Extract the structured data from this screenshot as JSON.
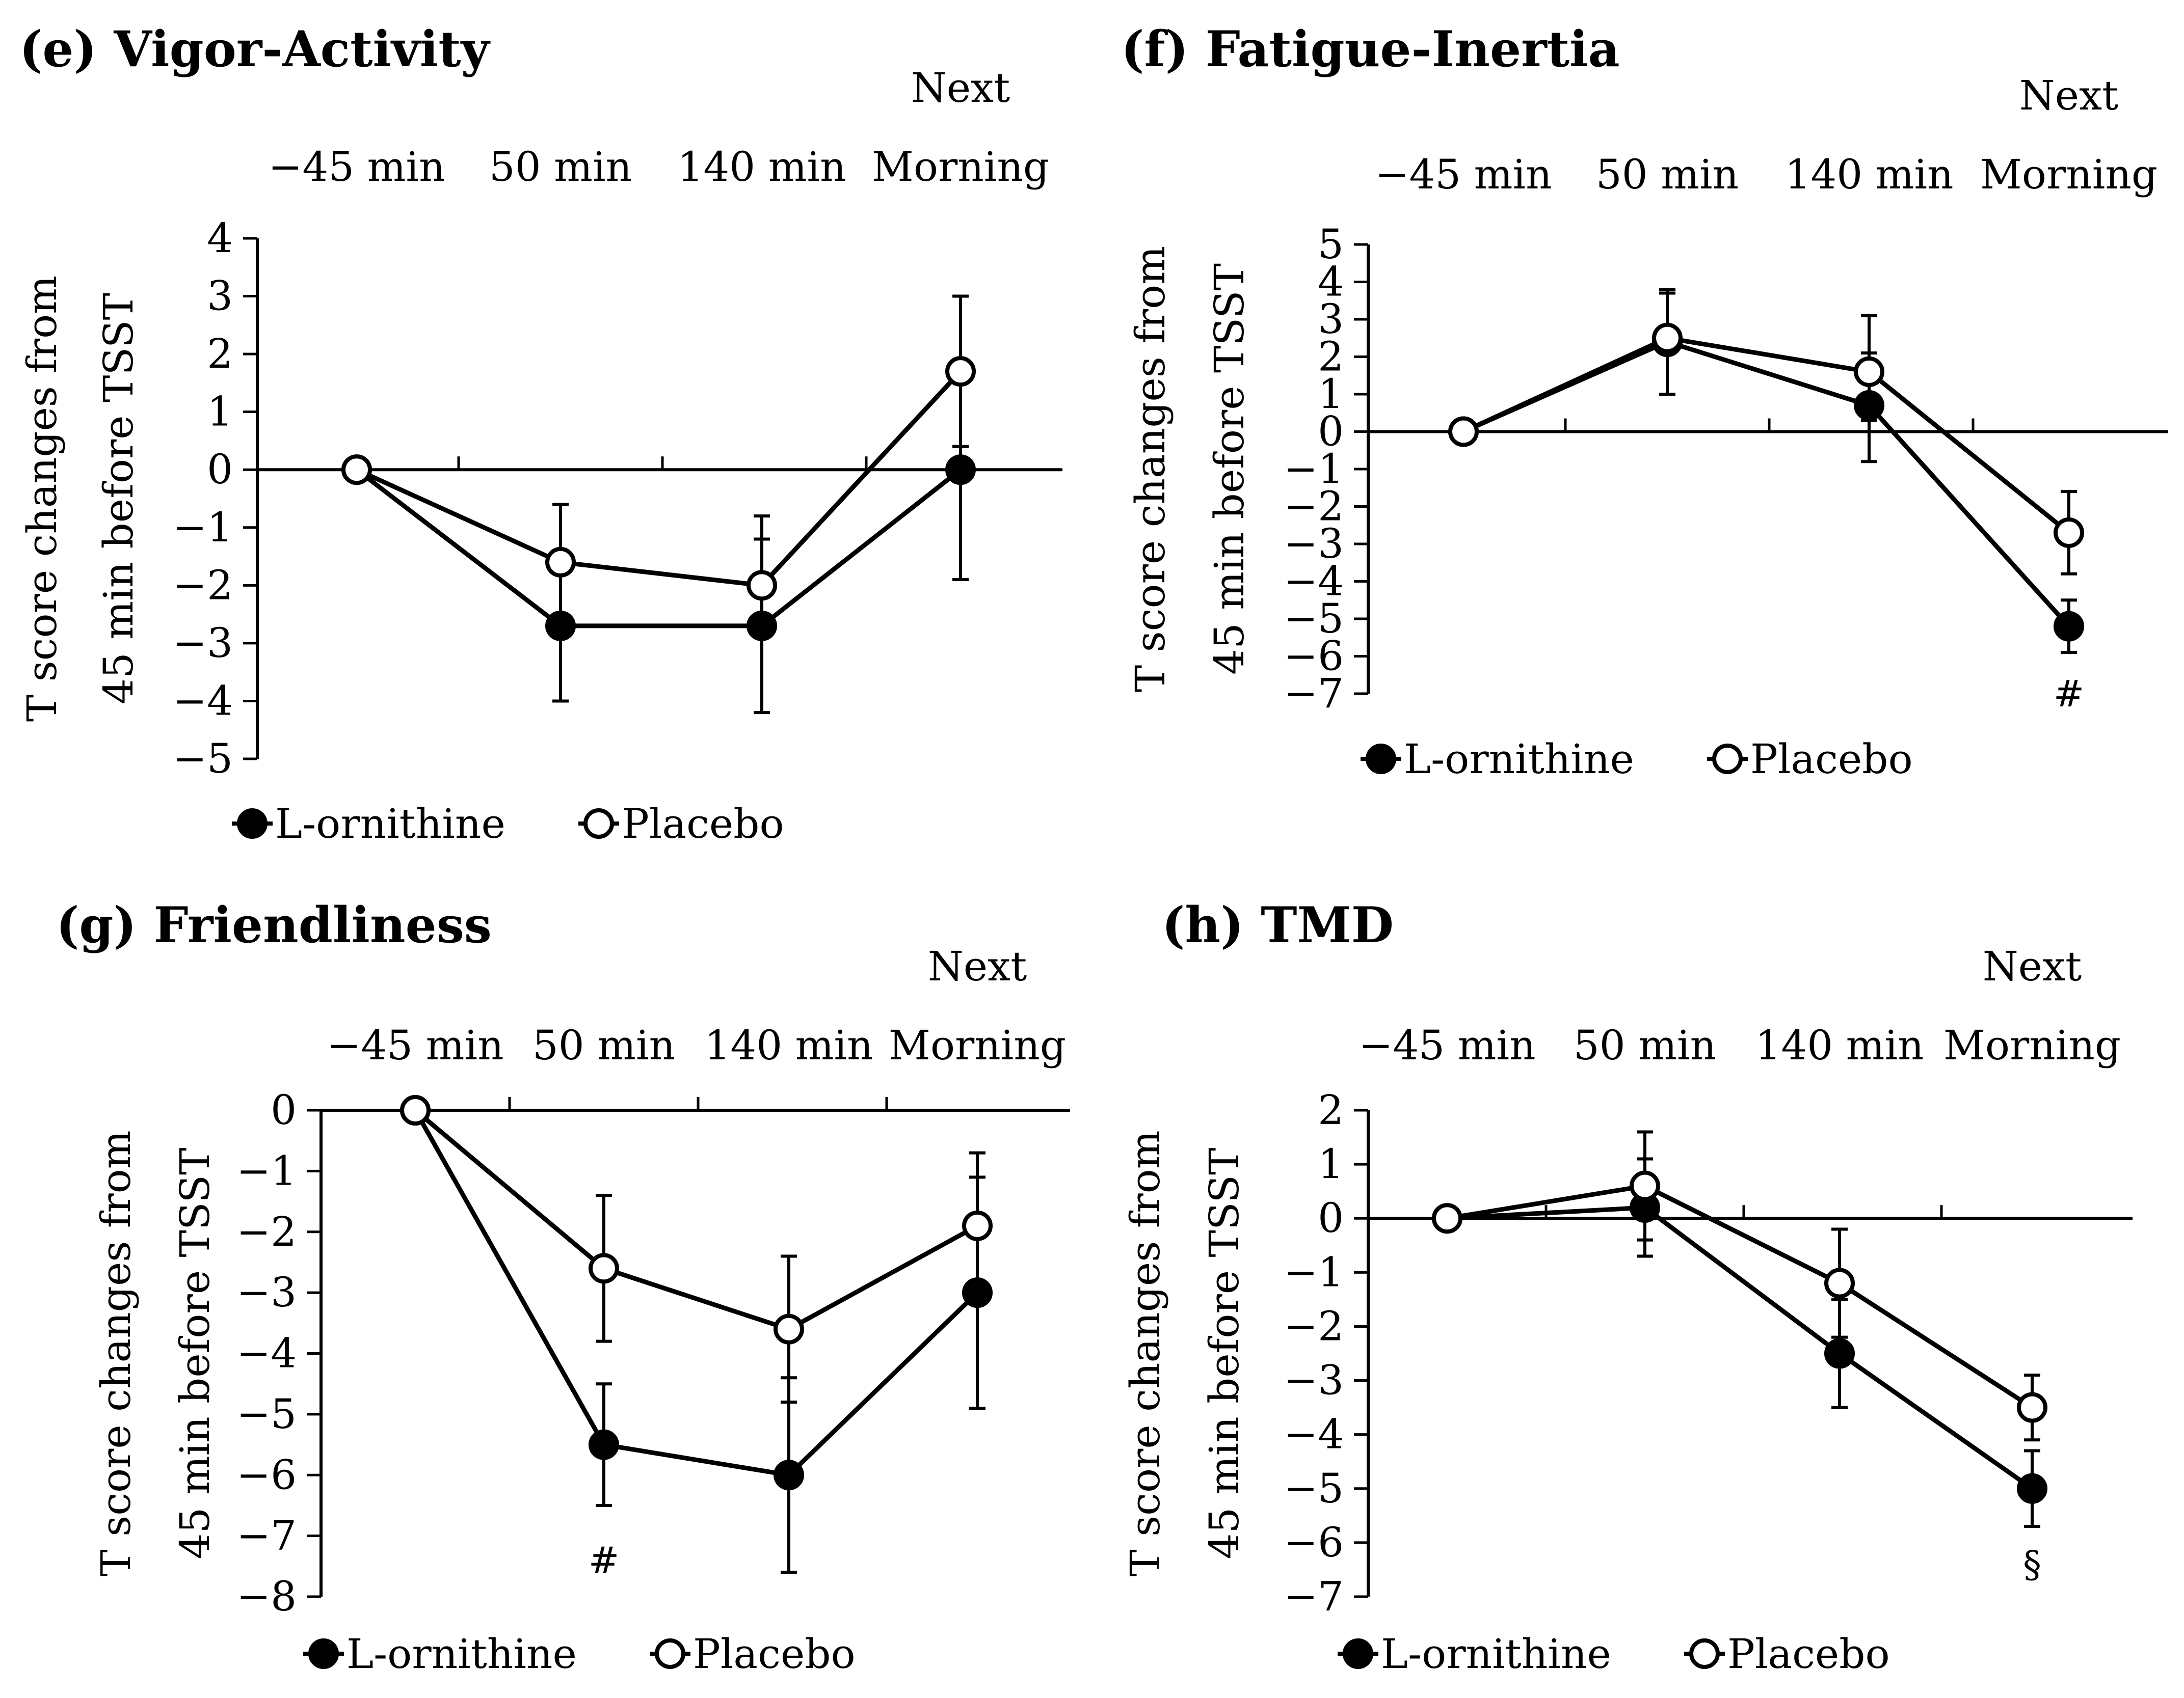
{
  "chart_data": [
    {
      "panel": "e",
      "type": "line",
      "title": "(e) Vigor-Activity",
      "categories": [
        "−45 min",
        "50 min",
        "140 min",
        "Morning"
      ],
      "category_prefix": [
        "",
        "",
        "",
        "Next"
      ],
      "ylabel": [
        "T score changes from",
        "45 min before TSST"
      ],
      "ylim": [
        -5,
        4
      ],
      "yticks": [
        4,
        3,
        2,
        1,
        0,
        -1,
        -2,
        -3,
        -4,
        -5
      ],
      "x_axis_at": 0,
      "series": [
        {
          "name": "L-ornithine",
          "marker": "filled",
          "values": [
            0,
            -2.7,
            -2.7,
            0
          ],
          "err_low": [
            0,
            -4.0,
            -4.2,
            -1.9
          ],
          "err_high": [
            0,
            -1.6,
            -1.2,
            0.4
          ]
        },
        {
          "name": "Placebo",
          "marker": "open",
          "values": [
            0,
            -1.6,
            -2.0,
            1.7
          ],
          "err_low": [
            0,
            -2.6,
            -2.6,
            0.4
          ],
          "err_high": [
            0,
            -0.6,
            -0.8,
            3.0
          ]
        }
      ],
      "annotations": []
    },
    {
      "panel": "f",
      "type": "line",
      "title": "(f) Fatigue-Inertia",
      "categories": [
        "−45 min",
        "50 min",
        "140 min",
        "Morning"
      ],
      "category_prefix": [
        "",
        "",
        "",
        "Next"
      ],
      "ylabel": [
        "T score changes from",
        "45 min before TSST"
      ],
      "ylim": [
        -7,
        5
      ],
      "yticks": [
        5,
        4,
        3,
        2,
        1,
        0,
        -1,
        -2,
        -3,
        -4,
        -5,
        -6,
        -7
      ],
      "x_axis_at": 0,
      "series": [
        {
          "name": "L-ornithine",
          "marker": "filled",
          "values": [
            0,
            2.4,
            0.7,
            -5.2
          ],
          "err_low": [
            0,
            1.0,
            -0.8,
            -5.9
          ],
          "err_high": [
            0,
            3.8,
            2.1,
            -4.5
          ]
        },
        {
          "name": "Placebo",
          "marker": "open",
          "values": [
            0,
            2.5,
            1.6,
            -2.7
          ],
          "err_low": [
            0,
            1.0,
            0.3,
            -3.8
          ],
          "err_high": [
            0,
            3.7,
            3.1,
            -1.6
          ]
        }
      ],
      "annotations": [
        {
          "text": "#",
          "x": "Morning",
          "y": -7.0
        }
      ]
    },
    {
      "panel": "g",
      "type": "line",
      "title": "(g) Friendliness",
      "categories": [
        "−45 min",
        "50 min",
        "140 min",
        "Morning"
      ],
      "category_prefix": [
        "",
        "",
        "",
        "Next"
      ],
      "ylabel": [
        "T score changes from",
        "45 min before TSST"
      ],
      "ylim": [
        -8,
        0
      ],
      "yticks": [
        0,
        -1,
        -2,
        -3,
        -4,
        -5,
        -6,
        -7,
        -8
      ],
      "x_axis_at": 0,
      "series": [
        {
          "name": "L-ornithine",
          "marker": "filled",
          "values": [
            0,
            -5.5,
            -6.0,
            -3.0
          ],
          "err_low": [
            0,
            -6.5,
            -7.6,
            -4.9
          ],
          "err_high": [
            0,
            -4.5,
            -4.4,
            -1.1
          ]
        },
        {
          "name": "Placebo",
          "marker": "open",
          "values": [
            0,
            -2.6,
            -3.6,
            -1.9
          ],
          "err_low": [
            0,
            -3.8,
            -4.8,
            -3.1
          ],
          "err_high": [
            0,
            -1.4,
            -2.4,
            -0.7
          ]
        }
      ],
      "annotations": [
        {
          "text": "#",
          "x": "50 min",
          "y": -7.4
        }
      ]
    },
    {
      "panel": "h",
      "type": "line",
      "title": "(h) TMD",
      "categories": [
        "−45 min",
        "50 min",
        "140 min",
        "Morning"
      ],
      "category_prefix": [
        "",
        "",
        "",
        "Next"
      ],
      "ylabel": [
        "T score changes from",
        "45 min before TSST"
      ],
      "ylim": [
        -7,
        2
      ],
      "yticks": [
        2,
        1,
        0,
        -1,
        -2,
        -3,
        -4,
        -5,
        -6,
        -7
      ],
      "x_axis_at": 0,
      "series": [
        {
          "name": "L-ornithine",
          "marker": "filled",
          "values": [
            0,
            0.2,
            -2.5,
            -5.0
          ],
          "err_low": [
            0,
            -0.7,
            -3.5,
            -5.7
          ],
          "err_high": [
            0,
            1.1,
            -1.5,
            -4.3
          ]
        },
        {
          "name": "Placebo",
          "marker": "open",
          "values": [
            0,
            0.6,
            -1.2,
            -3.5
          ],
          "err_low": [
            0,
            -0.4,
            -2.2,
            -4.1
          ],
          "err_high": [
            0,
            1.6,
            -0.2,
            -2.9
          ]
        }
      ],
      "annotations": [
        {
          "text": "§",
          "x": "Morning",
          "y": -6.4
        }
      ]
    }
  ]
}
